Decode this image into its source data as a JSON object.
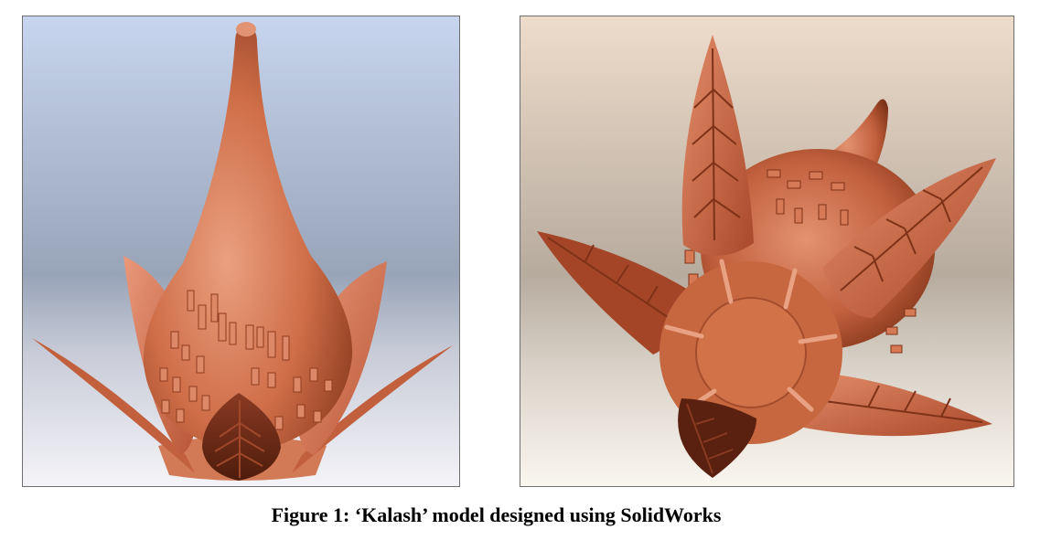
{
  "figure": {
    "caption": "Figure 1: ‘Kalash’ model designed using SolidWorks",
    "colors": {
      "copper_light": "#e8906d",
      "copper_mid": "#c8673f",
      "copper_dark": "#6e2a14",
      "left_bg_top": "#c5d3ec",
      "left_bg_bottom": "#f3f3f7",
      "right_bg_top": "#ecd9c8",
      "right_bg_bottom": "#faf6f1"
    }
  }
}
